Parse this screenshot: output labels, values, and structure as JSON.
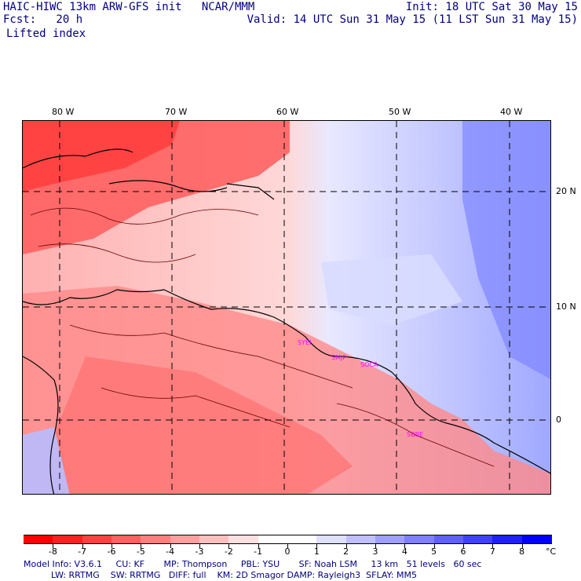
{
  "header": {
    "model_title": "HAIC-HIWC 13km ARW-GFS init   NCAR/MMM",
    "init_text": "Init: 18 UTC Sat 30 May 15",
    "fcst_text": "Fcst:   20 h",
    "valid_text": "Valid: 14 UTC Sun 31 May 15 (11 LST Sun 31 May 15)",
    "field_name": "Lifted index"
  },
  "map": {
    "lon_labels": [
      "80 W",
      "70 W",
      "60 W",
      "50 W",
      "40 W"
    ],
    "lat_labels": [
      "20 N",
      "10 N",
      "0"
    ],
    "stations": [
      "SYEI",
      "SMJP",
      "SOCA",
      "SBBE"
    ],
    "colors": {
      "coast": "#000000",
      "grid": "#000000",
      "contour": "#6b0000",
      "station": "#ff00ff"
    }
  },
  "colorbar": {
    "unit": "°C",
    "labels": [
      "-8",
      "-7",
      "-6",
      "-5",
      "-4",
      "-3",
      "-2",
      "-1",
      "0",
      "1",
      "2",
      "3",
      "4",
      "5",
      "6",
      "7",
      "8"
    ],
    "colors": [
      "#ff0000",
      "#ff2020",
      "#ff4040",
      "#ff6060",
      "#ff7f7f",
      "#ff9f9f",
      "#ffbfbf",
      "#ffdfdf",
      "#ffffff",
      "#ffffff",
      "#dfdfff",
      "#bfbfff",
      "#9f9fff",
      "#7f7fff",
      "#6060ff",
      "#4040ff",
      "#2020ff",
      "#0000ff"
    ]
  },
  "model_info": {
    "line1": "Model Info: V3.6.1     CU: KF       MP: Thompson     PBL: YSU       SF: Noah LSM     13 km   51 levels   60 sec",
    "line2": "          LW: RRTMG    SW: RRTMG   DIFF: full    KM: 2D Smagor DAMP: Rayleigh3  SFLAY: MM5"
  }
}
